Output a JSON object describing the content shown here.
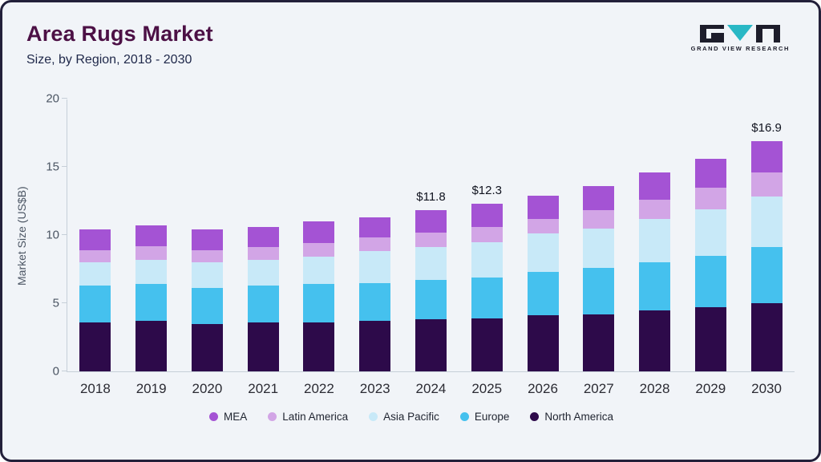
{
  "header": {
    "title": "Area Rugs Market",
    "subtitle": "Size, by Region, 2018 - 2030"
  },
  "logo": {
    "name": "grand-view-research-logo",
    "text": "GRAND VIEW RESEARCH",
    "accent_color": "#29b8c5",
    "dark_color": "#1d1d2b"
  },
  "chart_data": {
    "type": "bar",
    "stacked": true,
    "title": "Area Rugs Market Size, by Region, 2018 - 2030",
    "ylabel": "Market Size (US$B)",
    "xlabel": "",
    "ylim": [
      0,
      20
    ],
    "yticks": [
      0,
      5,
      10,
      15,
      20
    ],
    "grid": false,
    "legend_position": "bottom",
    "categories": [
      "2018",
      "2019",
      "2020",
      "2021",
      "2022",
      "2023",
      "2024",
      "2025",
      "2026",
      "2027",
      "2028",
      "2029",
      "2030"
    ],
    "series": [
      {
        "name": "North America",
        "color": "#2d0a4a",
        "values": [
          3.6,
          3.7,
          3.5,
          3.6,
          3.6,
          3.7,
          3.8,
          3.9,
          4.1,
          4.2,
          4.5,
          4.7,
          5.0
        ]
      },
      {
        "name": "Europe",
        "color": "#45c1ee",
        "values": [
          2.7,
          2.7,
          2.6,
          2.7,
          2.8,
          2.8,
          2.9,
          3.0,
          3.2,
          3.4,
          3.5,
          3.8,
          4.1
        ]
      },
      {
        "name": "Asia Pacific",
        "color": "#c8e9f8",
        "values": [
          1.7,
          1.8,
          1.9,
          1.9,
          2.0,
          2.3,
          2.4,
          2.6,
          2.8,
          2.9,
          3.2,
          3.4,
          3.7
        ]
      },
      {
        "name": "Latin America",
        "color": "#d2a5e6",
        "values": [
          0.9,
          1.0,
          0.9,
          0.9,
          1.0,
          1.0,
          1.1,
          1.1,
          1.1,
          1.3,
          1.4,
          1.6,
          1.8
        ]
      },
      {
        "name": "MEA",
        "color": "#a453d4",
        "values": [
          1.5,
          1.5,
          1.5,
          1.5,
          1.6,
          1.5,
          1.6,
          1.7,
          1.7,
          1.8,
          2.0,
          2.1,
          2.3
        ]
      }
    ],
    "totals": [
      10.4,
      10.7,
      10.4,
      10.6,
      11.0,
      11.3,
      11.8,
      12.3,
      12.9,
      13.6,
      14.6,
      15.6,
      16.9
    ],
    "annotations": {
      "2024": "$11.8",
      "2025": "$12.3",
      "2030": "$16.9"
    },
    "legend_order": [
      "MEA",
      "Latin America",
      "Asia Pacific",
      "Europe",
      "North America"
    ]
  }
}
